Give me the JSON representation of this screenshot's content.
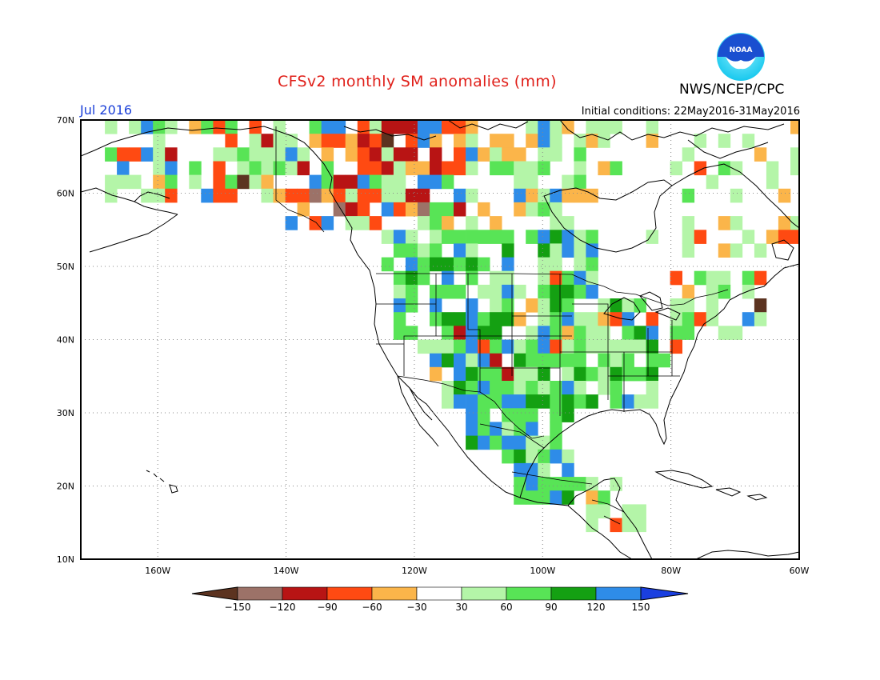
{
  "title": "CFSv2 monthly SM anomalies (mm)",
  "agency": "NWS/NCEP/CPC",
  "logo_text": "NOAA",
  "month": "Jul 2016",
  "initial_conditions": "Initial conditions: 22May2016-31May2016",
  "map": {
    "lon_range": [
      -172,
      -60
    ],
    "lat_range": [
      10,
      70
    ],
    "lat_labels": [
      "70N",
      "60N",
      "50N",
      "40N",
      "30N",
      "20N",
      "10N"
    ],
    "lon_labels": [
      "160W",
      "140W",
      "120W",
      "100W",
      "80W",
      "60W"
    ],
    "gridlines": true
  },
  "colorbar": {
    "labels": [
      "-150",
      "-120",
      "-90",
      "-60",
      "-30",
      "30",
      "60",
      "90",
      "120",
      "150"
    ],
    "colors": [
      "#5c3320",
      "#9c7268",
      "#b81414",
      "#ff4a12",
      "#fbb54a",
      "#ffffff",
      "#b4f5a8",
      "#58e456",
      "#14a012",
      "#2e8ce8",
      "#1a3fe0"
    ],
    "color_meaning": [
      "< -150",
      "-150 to -120",
      "-120 to -90",
      "-90 to -60",
      "-60 to -30",
      "-30 to 30",
      "30 to 60",
      "60 to 90",
      "90 to 120",
      "120 to 150",
      "> 150"
    ]
  },
  "colors": {
    "title": "#e0201a",
    "month": "#1a3fd8",
    "logo_blue": "#1a4fd0",
    "logo_cyan": "#2ed8f0"
  }
}
